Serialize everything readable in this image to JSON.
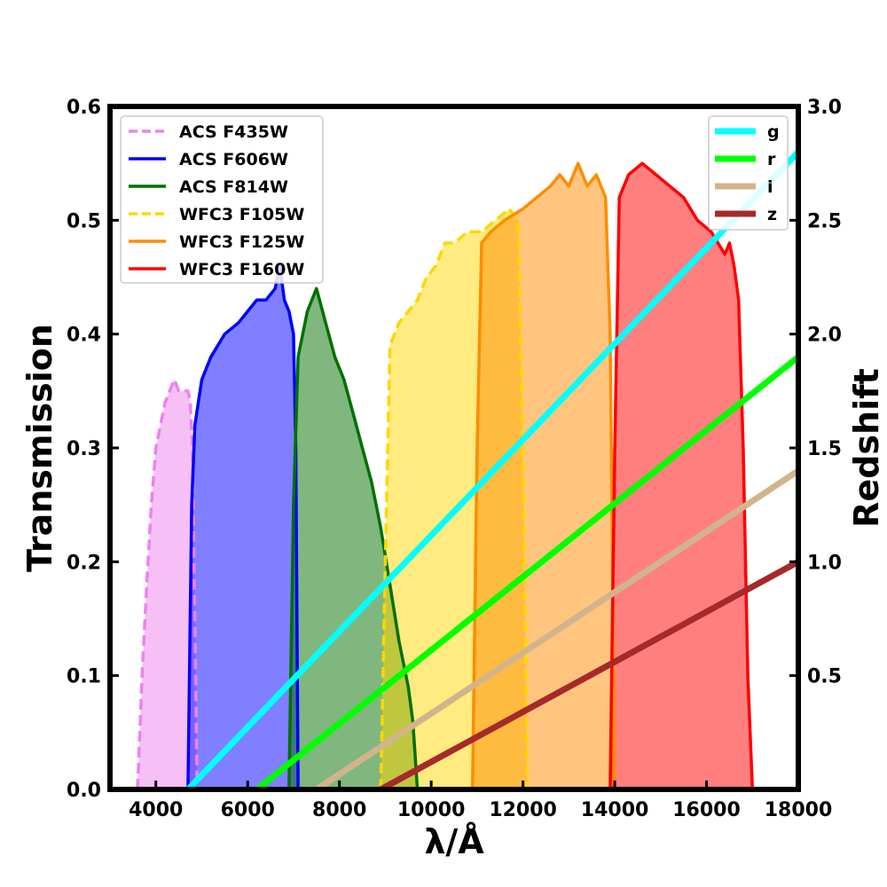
{
  "chart_data": {
    "type": "area",
    "xlabel": "λ/Å",
    "ylabel_left": "Transmission",
    "ylabel_right": "Redshift",
    "xlim": [
      3000,
      18000
    ],
    "ylim_left": [
      0,
      0.6
    ],
    "ylim_right": [
      0,
      3.0
    ],
    "x_ticks": [
      4000,
      6000,
      8000,
      10000,
      12000,
      14000,
      16000,
      18000
    ],
    "y_ticks_left": [
      "0.0",
      "0.1",
      "0.2",
      "0.3",
      "0.4",
      "0.5",
      "0.6"
    ],
    "y_ticks_right": [
      "0.5",
      "1.0",
      "1.5",
      "2.0",
      "2.5",
      "3.0"
    ],
    "legend_left_placement": "upper-left",
    "legend_right_placement": "upper-right",
    "grid": false,
    "filters": [
      {
        "name": "ACS F435W",
        "color": "#ee82ee",
        "dash": true,
        "x": [
          3600,
          3700,
          3800,
          3900,
          4000,
          4100,
          4200,
          4300,
          4400,
          4500,
          4600,
          4700,
          4750,
          4800,
          4850,
          4900
        ],
        "y": [
          0.0,
          0.1,
          0.18,
          0.25,
          0.3,
          0.32,
          0.34,
          0.35,
          0.36,
          0.35,
          0.35,
          0.35,
          0.34,
          0.3,
          0.15,
          0.0
        ]
      },
      {
        "name": "ACS F606W",
        "color": "#0000ff",
        "dash": false,
        "x": [
          4700,
          4780,
          4850,
          5000,
          5200,
          5500,
          5800,
          6000,
          6200,
          6400,
          6600,
          6700,
          6800,
          6900,
          7000,
          7050,
          7100
        ],
        "y": [
          0.0,
          0.25,
          0.32,
          0.36,
          0.38,
          0.4,
          0.41,
          0.42,
          0.43,
          0.43,
          0.44,
          0.46,
          0.43,
          0.42,
          0.4,
          0.3,
          0.0
        ]
      },
      {
        "name": "ACS F814W",
        "color": "#007000",
        "dash": false,
        "x": [
          6900,
          7000,
          7100,
          7300,
          7500,
          7700,
          7900,
          8100,
          8300,
          8500,
          8700,
          8900,
          9100,
          9300,
          9500,
          9600,
          9700
        ],
        "y": [
          0.0,
          0.25,
          0.38,
          0.42,
          0.44,
          0.41,
          0.38,
          0.36,
          0.33,
          0.3,
          0.27,
          0.23,
          0.18,
          0.13,
          0.09,
          0.06,
          0.0
        ]
      },
      {
        "name": "WFC3 F105W",
        "color": "#ffd700",
        "dash": true,
        "x": [
          8900,
          9000,
          9100,
          9300,
          9500,
          9700,
          9900,
          10100,
          10300,
          10500,
          10800,
          11100,
          11400,
          11700,
          11900,
          12000,
          12100
        ],
        "y": [
          0.0,
          0.2,
          0.39,
          0.41,
          0.42,
          0.43,
          0.45,
          0.46,
          0.48,
          0.48,
          0.49,
          0.49,
          0.5,
          0.51,
          0.5,
          0.3,
          0.0
        ]
      },
      {
        "name": "WFC3 F125W",
        "color": "#ff8c00",
        "dash": false,
        "x": [
          10900,
          11000,
          11100,
          11300,
          11600,
          12000,
          12300,
          12600,
          12800,
          13000,
          13200,
          13400,
          13600,
          13800,
          13900,
          13950,
          14000
        ],
        "y": [
          0.0,
          0.3,
          0.48,
          0.49,
          0.5,
          0.51,
          0.52,
          0.53,
          0.54,
          0.53,
          0.55,
          0.53,
          0.54,
          0.52,
          0.4,
          0.2,
          0.0
        ]
      },
      {
        "name": "WFC3 F160W",
        "color": "#ff0000",
        "dash": false,
        "x": [
          13900,
          14000,
          14100,
          14300,
          14600,
          14900,
          15200,
          15500,
          15800,
          16100,
          16400,
          16500,
          16600,
          16700,
          16800,
          16900,
          17000
        ],
        "y": [
          0.0,
          0.3,
          0.52,
          0.54,
          0.55,
          0.54,
          0.53,
          0.52,
          0.5,
          0.49,
          0.47,
          0.48,
          0.46,
          0.43,
          0.3,
          0.1,
          0.0
        ]
      }
    ],
    "redshift_lines": [
      {
        "name": "g",
        "color": "#00ffff",
        "x": [
          4700,
          18000
        ],
        "z": [
          0.0,
          2.8
        ]
      },
      {
        "name": "r",
        "color": "#00ff00",
        "x": [
          6200,
          18000
        ],
        "z": [
          0.0,
          1.9
        ]
      },
      {
        "name": "i",
        "color": "#d2b48c",
        "x": [
          7500,
          18000
        ],
        "z": [
          0.0,
          1.4
        ]
      },
      {
        "name": "z",
        "color": "#a52a2a",
        "x": [
          8900,
          18000
        ],
        "z": [
          0.0,
          1.0
        ]
      }
    ]
  }
}
